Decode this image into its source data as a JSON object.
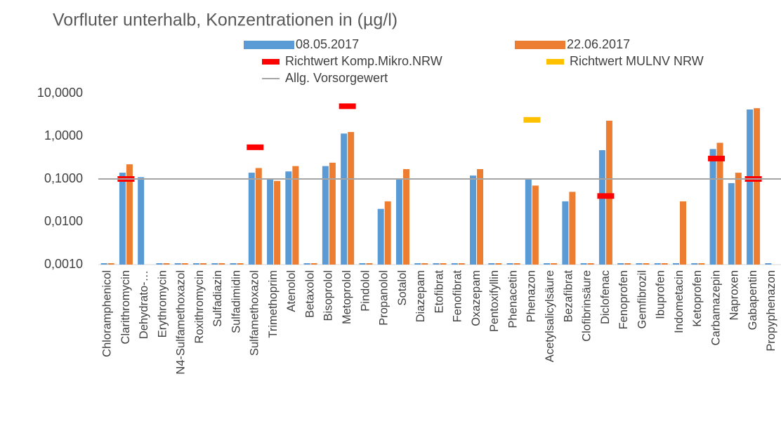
{
  "chart_data": {
    "type": "bar",
    "title": "Vorfluter unterhalb, Konzentrationen in (µg/l)",
    "categories": [
      "Chloramphenicol",
      "Clarithromycin",
      "Dehydrato-…",
      "Erythromycin",
      "N4-Sulfamethoxazol",
      "Roxithromycin",
      "Sulfadiazin",
      "Sulfadimidin",
      "Sulfamethoxazol",
      "Trimethoprim",
      "Atenolol",
      "Betaxolol",
      "Bisoprolol",
      "Metoprolol",
      "Pindolol",
      "Propanolol",
      "Sotalol",
      "Diazepam",
      "Etofibrat",
      "Fenofibrat",
      "Oxazepam",
      "Pentoxifyllin",
      "Phenacetin",
      "Phenazon",
      "Acetylsalicylsäure",
      "Bezafibrat",
      "Clofibrinsäure",
      "Diclofenac",
      "Fenoprofen",
      "Gemfibrozil",
      "Ibuprofen",
      "Indometacin",
      "Ketoprofen",
      "Carbamazepin",
      "Naproxen",
      "Gabapentin",
      "Propyphenazon"
    ],
    "series": [
      {
        "name": "08.05.2017",
        "type": "bar",
        "color": "#5b9bd5",
        "values": [
          0.001,
          0.14,
          0.11,
          0.001,
          0.001,
          0.001,
          0.001,
          0.001,
          0.14,
          0.1,
          0.15,
          0.001,
          0.2,
          1.15,
          0.001,
          0.02,
          0.1,
          0.001,
          0.001,
          0.001,
          0.12,
          0.001,
          0.001,
          0.1,
          0.001,
          0.03,
          0.001,
          0.47,
          0.001,
          0.001,
          0.001,
          0.001,
          0.001,
          0.5,
          0.08,
          4.2,
          0.001
        ]
      },
      {
        "name": "22.06.2017",
        "type": "bar",
        "color": "#ed7d31",
        "values": [
          0.001,
          0.22,
          null,
          0.001,
          0.001,
          0.001,
          0.001,
          0.001,
          0.18,
          0.09,
          0.2,
          0.001,
          0.24,
          1.25,
          0.001,
          0.03,
          0.17,
          0.001,
          0.001,
          0.001,
          0.17,
          0.001,
          0.001,
          0.07,
          0.001,
          0.05,
          0.001,
          2.3,
          0.001,
          0.001,
          0.001,
          0.03,
          0.001,
          0.7,
          0.14,
          4.5,
          null
        ]
      },
      {
        "name": "Richtwert Komp.Mikro.NRW",
        "type": "marker",
        "color": "#ff0000",
        "values": [
          null,
          0.1,
          null,
          null,
          null,
          null,
          null,
          null,
          0.55,
          null,
          null,
          null,
          null,
          5.0,
          null,
          null,
          null,
          null,
          null,
          null,
          null,
          null,
          null,
          null,
          null,
          null,
          null,
          0.04,
          null,
          null,
          null,
          null,
          null,
          0.3,
          null,
          0.1,
          null
        ]
      },
      {
        "name": "Richtwert MULNV NRW",
        "type": "marker",
        "color": "#ffc000",
        "values": [
          null,
          null,
          null,
          null,
          null,
          null,
          null,
          null,
          null,
          null,
          null,
          null,
          null,
          null,
          null,
          null,
          null,
          null,
          null,
          null,
          null,
          null,
          null,
          2.4,
          null,
          null,
          null,
          null,
          null,
          null,
          null,
          null,
          null,
          null,
          null,
          null,
          null
        ]
      },
      {
        "name": "Allg. Vorsorgewert",
        "type": "line",
        "color": "#a5a5a5",
        "values": [
          0.1,
          0.1,
          0.1,
          0.1,
          0.1,
          0.1,
          0.1,
          0.1,
          0.1,
          0.1,
          0.1,
          0.1,
          0.1,
          0.1,
          0.1,
          0.1,
          0.1,
          0.1,
          0.1,
          0.1,
          0.1,
          0.1,
          0.1,
          0.1,
          0.1,
          0.1,
          0.1,
          0.1,
          0.1,
          0.1,
          0.1,
          0.1,
          0.1,
          0.1,
          0.1,
          0.1,
          0.1
        ]
      }
    ],
    "log_scale": true,
    "ylim": [
      0.001,
      10
    ],
    "yticks": [
      {
        "value": 10,
        "label": "10,0000"
      },
      {
        "value": 1,
        "label": "1,0000"
      },
      {
        "value": 0.1,
        "label": "0,1000"
      },
      {
        "value": 0.01,
        "label": "0,0100"
      },
      {
        "value": 0.001,
        "label": "0,0010"
      }
    ],
    "legend": "top"
  }
}
